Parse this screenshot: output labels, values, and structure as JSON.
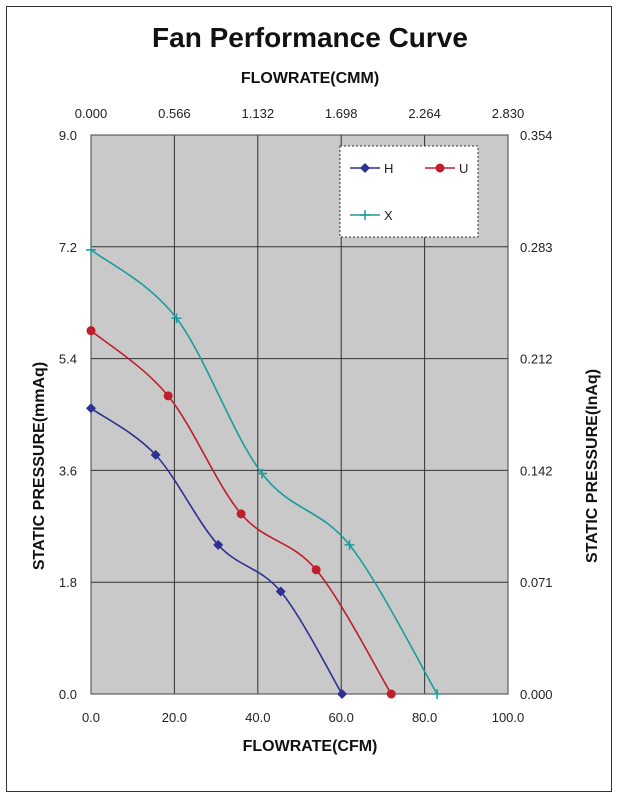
{
  "chart_data": {
    "type": "line",
    "title": "Fan Performance Curve",
    "xlabel": "FLOWRATE(CFM)",
    "x2label": "FLOWRATE(CMM)",
    "ylabel": "STATIC PRESSURE(mmAq)",
    "y2label": "STATIC PRESSURE(InAq)",
    "xlim": [
      0,
      100
    ],
    "ylim": [
      0,
      9
    ],
    "grid": true,
    "legend_position": "top-right",
    "x_ticks": [
      "0.0",
      "20.0",
      "40.0",
      "60.0",
      "80.0",
      "100.0"
    ],
    "x2_ticks": [
      "0.000",
      "0.566",
      "1.132",
      "1.698",
      "2.264",
      "2.830"
    ],
    "y_ticks": [
      "0.0",
      "1.8",
      "3.6",
      "5.4",
      "7.2",
      "9.0"
    ],
    "y2_ticks": [
      "0.000",
      "0.071",
      "0.142",
      "0.212",
      "0.283",
      "0.354"
    ],
    "series": [
      {
        "name": "H",
        "color": "#2e3192",
        "marker": "diamond",
        "x": [
          0,
          15.5,
          30.5,
          45.5,
          60.2
        ],
        "y": [
          4.6,
          3.85,
          2.4,
          1.65,
          0.0
        ]
      },
      {
        "name": "U",
        "color": "#be1e2d",
        "marker": "circle",
        "x": [
          0,
          18.5,
          36.0,
          54.0,
          72.0
        ],
        "y": [
          5.85,
          4.8,
          2.9,
          2.0,
          0.0
        ]
      },
      {
        "name": "X",
        "color": "#1a9e9a",
        "marker": "plus",
        "x": [
          0,
          20.5,
          41.0,
          62.0,
          83.0
        ],
        "y": [
          7.15,
          6.05,
          3.55,
          2.4,
          0.0
        ]
      }
    ]
  }
}
